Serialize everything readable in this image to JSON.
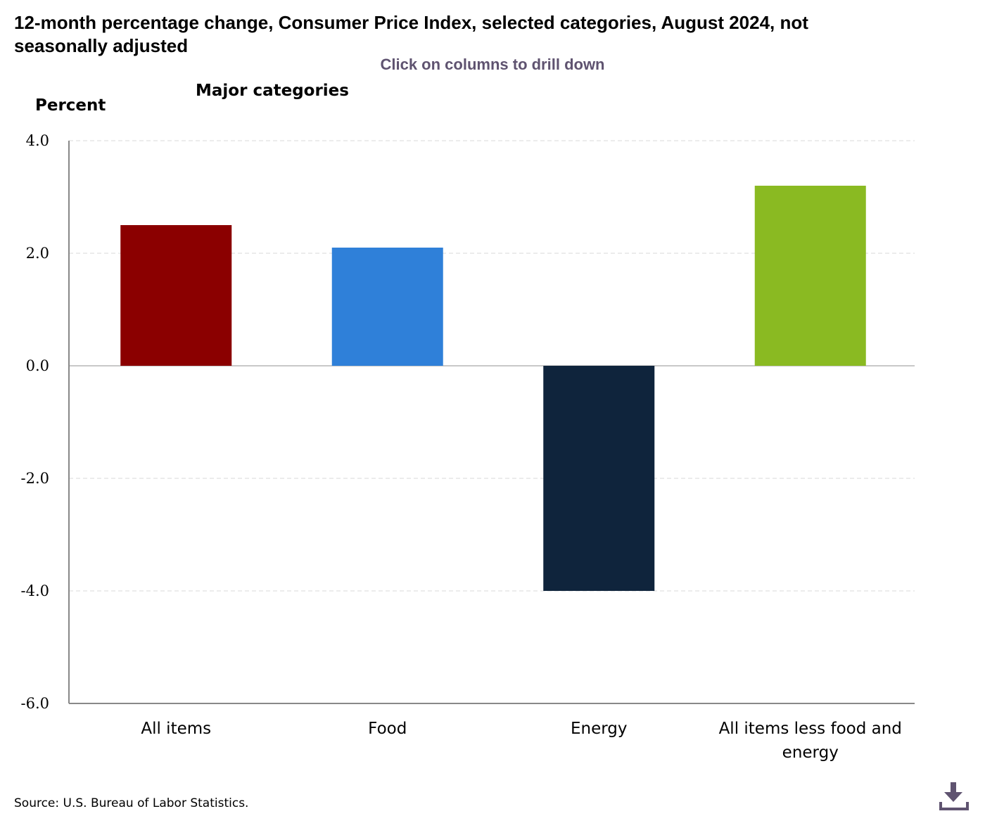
{
  "title": "12-month percentage change, Consumer Price Index, selected categories, August 2024, not seasonally adjusted",
  "subtitle": "Click on columns to drill down",
  "category_title": "Major categories",
  "source": "Source: U.S. Bureau of Labor Statistics.",
  "download_icon": "download-icon",
  "chart_data": {
    "type": "bar",
    "categories": [
      "All items",
      "Food",
      "Energy",
      "All items less food and energy"
    ],
    "values": [
      2.5,
      2.1,
      -4.0,
      3.2
    ],
    "colors": [
      "#8b0000",
      "#2f80d9",
      "#0f243c",
      "#8aba22"
    ],
    "ylabel": "Percent",
    "xlabel": "",
    "ylim": [
      -6.0,
      4.0
    ],
    "yticks": [
      "4.0",
      "2.0",
      "0.0",
      "-2.0",
      "-4.0",
      "-6.0"
    ],
    "grid": true,
    "legend": "none"
  }
}
